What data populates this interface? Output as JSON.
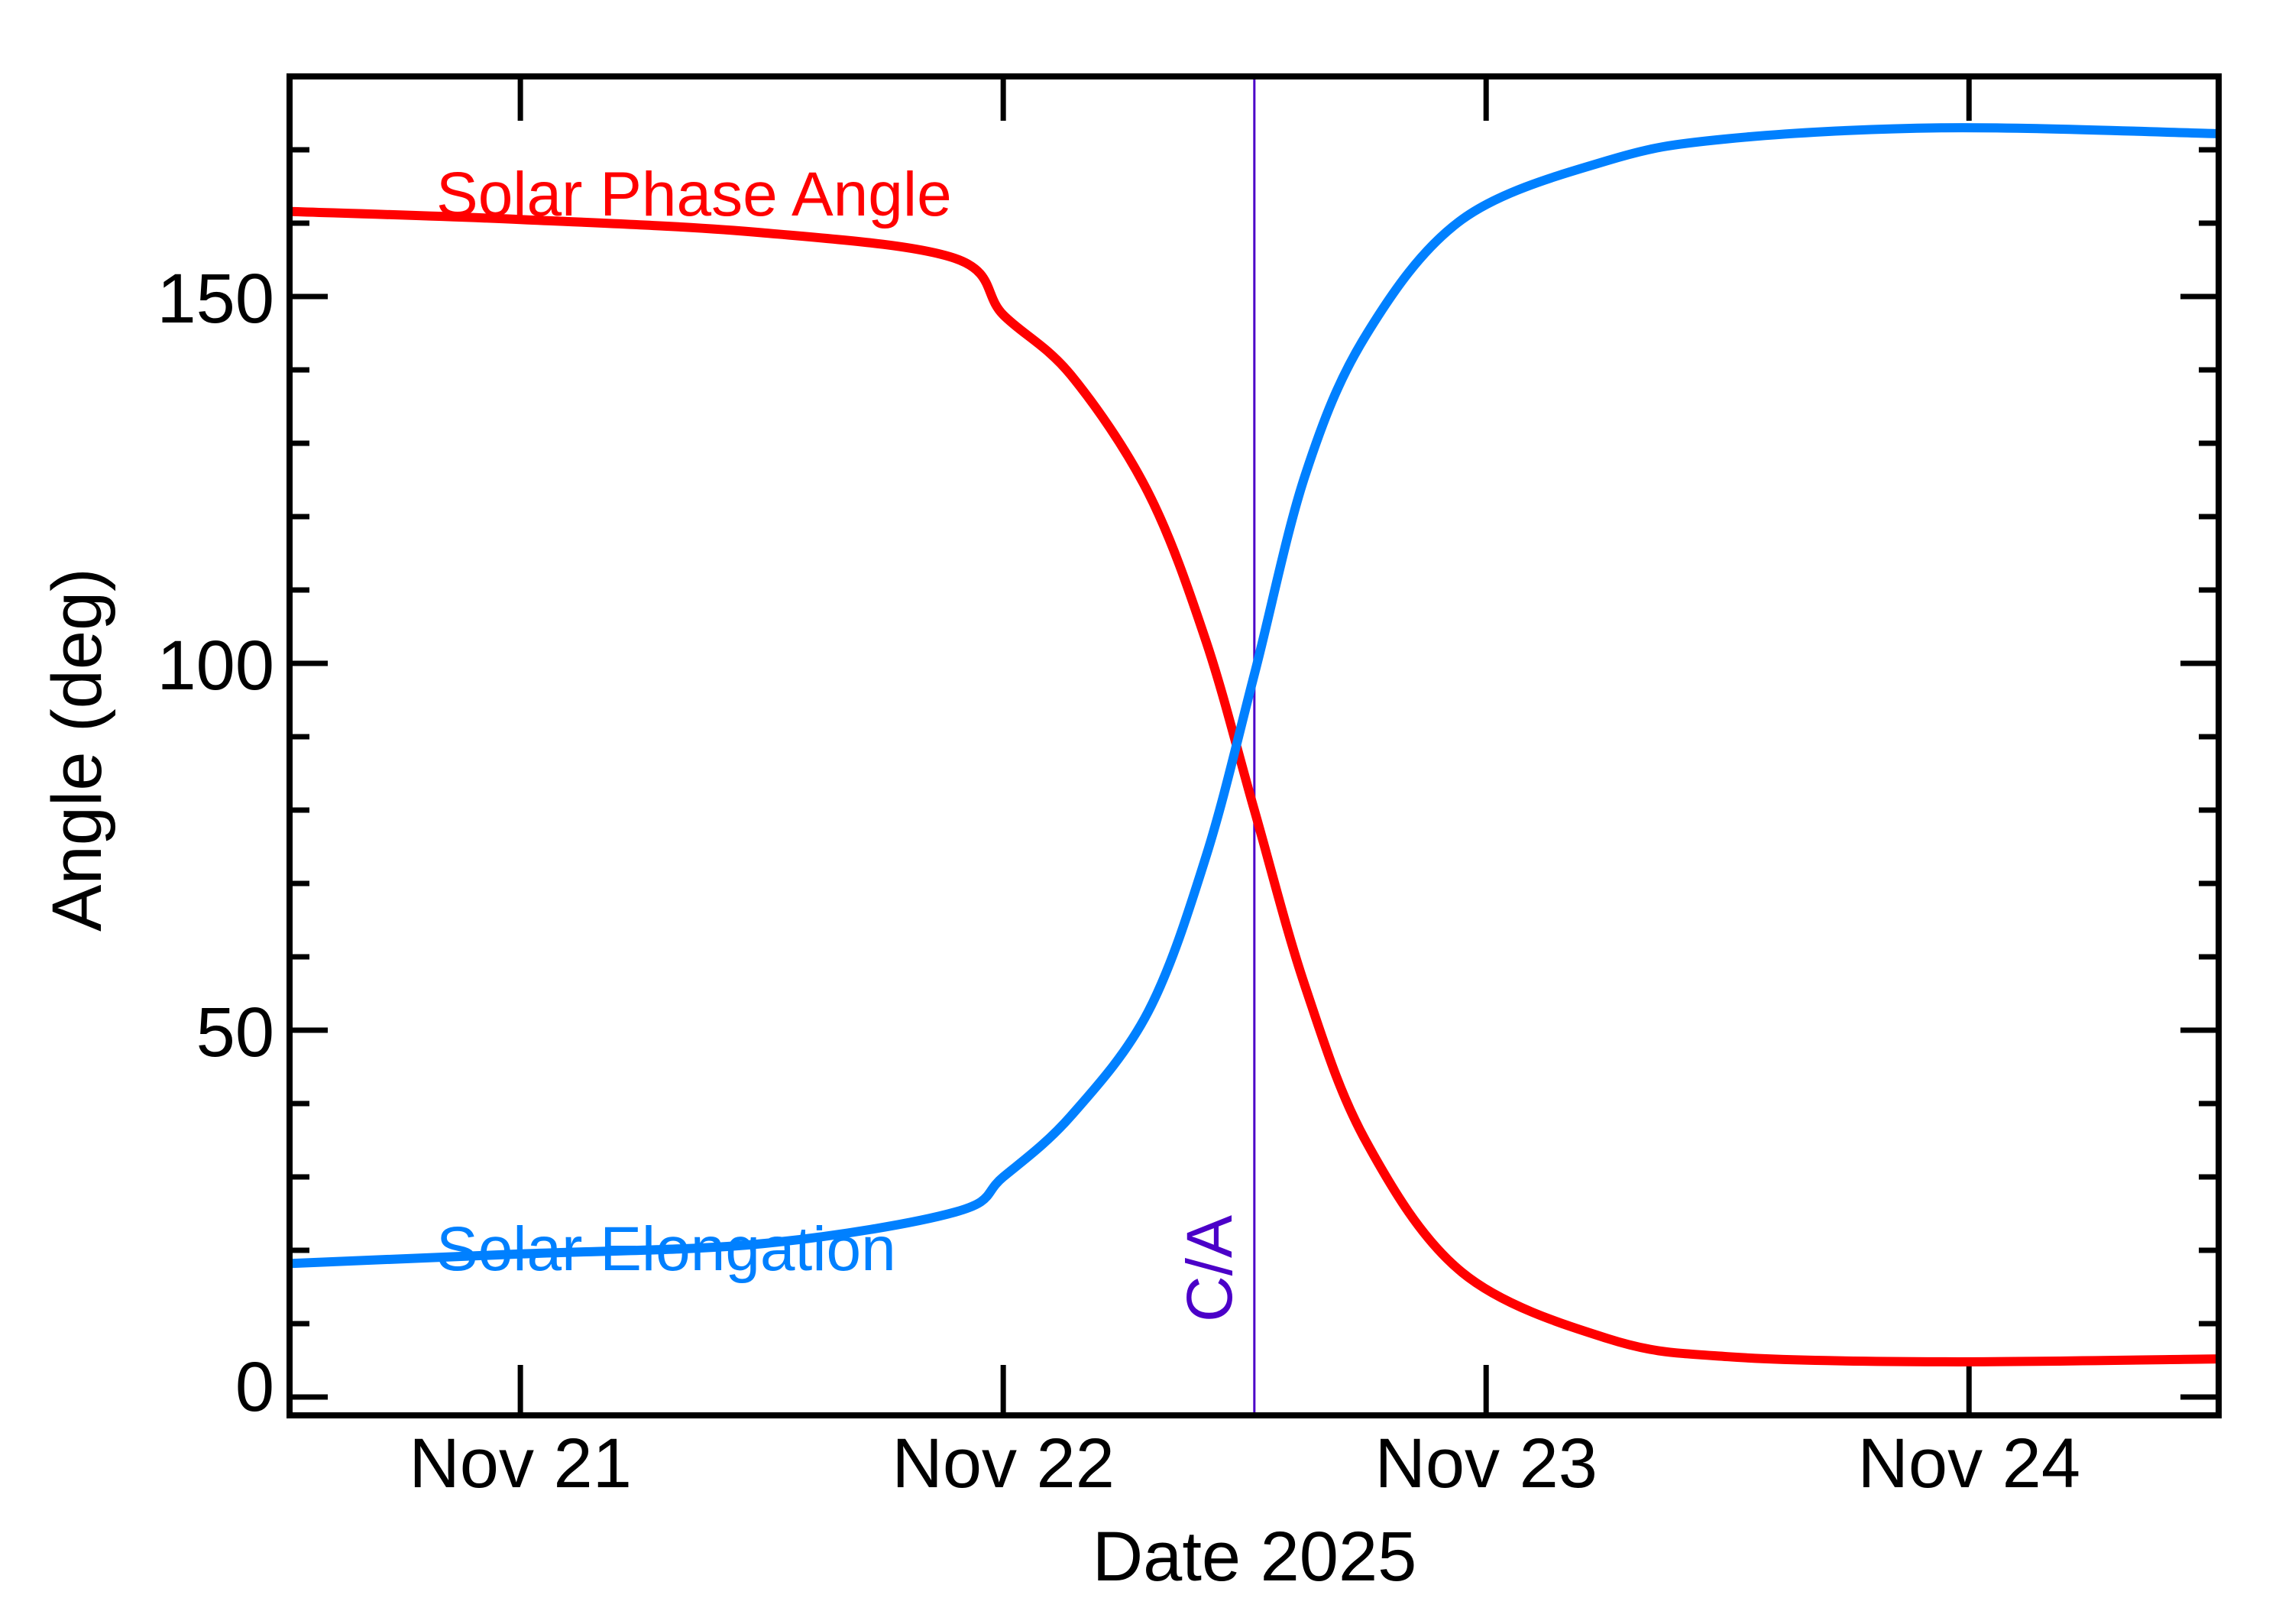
{
  "chart_data": {
    "type": "line",
    "title": "",
    "xlabel": "Date 2025",
    "ylabel": "Angle (deg)",
    "x_unit": "days since Nov 20 00:00",
    "xlim": [
      0.522,
      4.517
    ],
    "ylim": [
      -2.5,
      180
    ],
    "x_ticks": [
      {
        "value": 1,
        "label": "Nov 21"
      },
      {
        "value": 2,
        "label": "Nov 22"
      },
      {
        "value": 3,
        "label": "Nov 23"
      },
      {
        "value": 4,
        "label": "Nov 24"
      }
    ],
    "y_ticks": [
      {
        "value": 0,
        "label": "0"
      },
      {
        "value": 50,
        "label": "50"
      },
      {
        "value": 100,
        "label": "100"
      },
      {
        "value": 150,
        "label": "150"
      }
    ],
    "y_minor_step": 10,
    "grid": false,
    "legend_position": "inline labels",
    "series": [
      {
        "name": "Solar Phase Angle",
        "color": "#FF0000",
        "x": [
          0.522,
          1.0,
          1.5,
          1.9,
          2.0,
          2.14,
          2.3,
          2.42,
          2.52,
          2.625,
          2.75,
          2.95,
          3.25,
          3.5,
          3.95,
          4.517
        ],
        "values": [
          161.6,
          160.5,
          158.7,
          155.2,
          147.5,
          139.3,
          123.3,
          103.0,
          80.0,
          56.0,
          35.0,
          17.0,
          8.0,
          5.5,
          4.8,
          5.2
        ]
      },
      {
        "name": "Solar Elongation",
        "color": "#0080FF",
        "x": [
          0.522,
          1.0,
          1.5,
          1.9,
          2.0,
          2.14,
          2.3,
          2.42,
          2.52,
          2.625,
          2.75,
          2.95,
          3.25,
          3.5,
          3.95,
          4.517
        ],
        "values": [
          18.2,
          19.5,
          20.9,
          25.2,
          30.0,
          38.3,
          52.5,
          73.7,
          98.5,
          125.6,
          144.6,
          160.5,
          168.5,
          171.5,
          173.0,
          172.2
        ]
      }
    ],
    "annotations": [
      {
        "type": "vline",
        "x": 2.52,
        "label": "C/A",
        "color": "#4B00C8"
      }
    ]
  },
  "labels": {
    "xlabel": "Date 2025",
    "ylabel": "Angle (deg)",
    "phase_label": "Solar Phase Angle",
    "elongation_label": "Solar Elongation",
    "ca_label": "C/A"
  }
}
